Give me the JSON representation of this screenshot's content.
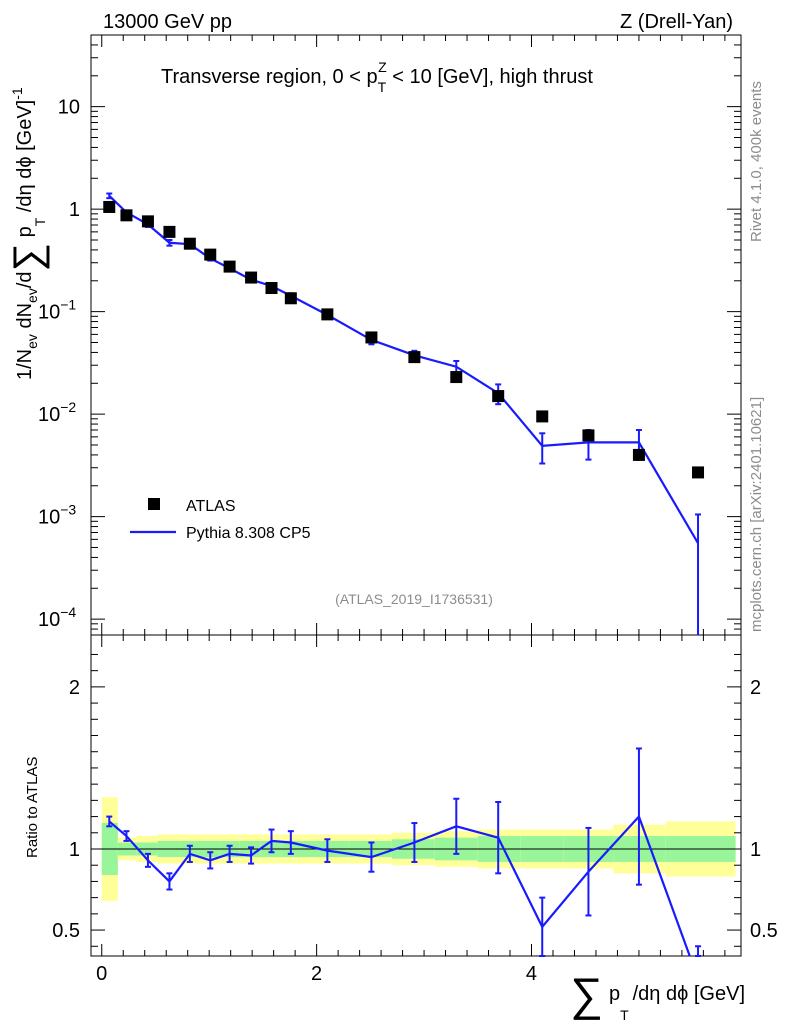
{
  "header": {
    "left": "13000 GeV pp",
    "right": "Z (Drell-Yan)"
  },
  "side": {
    "rivet": "Rivet 4.1.0,  400k events",
    "mcplots": "mcplots.cern.ch [arXiv:2401.10621]"
  },
  "chart_data": {
    "type": "scatter",
    "title": "Transverse region, 0 < p_T^Z < 10 [GeV], high thrust",
    "title_parts": {
      "pre": "Transverse region, 0 < p",
      "sub": "T",
      "sup": "Z",
      "post": " < 10 [GeV], high thrust"
    },
    "analysis_id": "(ATLAS_2019_I1736531)",
    "xlabel": "∑ p_T /dη dϕ [GeV]",
    "xlabel_parts": {
      "sum": "∑",
      "p": "p",
      "sub": "T",
      "rest": "/dη dϕ [GeV]"
    },
    "ylabel": "1/N_ev dN_ev/d∑ p_T /dη dϕ [GeV]^-1",
    "ylabel_parts": {
      "a": "1/N",
      "ev1": "ev",
      "b": " dN",
      "ev2": "ev",
      "c": "/d",
      "sum": "∑",
      "d": " p",
      "sub": "T",
      "e": " /dη dϕ  [GeV]",
      "sup": "-1"
    },
    "ratio_ylabel": "Ratio to ATLAS",
    "xlim": [
      -0.1,
      5.95
    ],
    "ylim": [
      7e-05,
      50
    ],
    "yscale": "log",
    "ratio_ylim": [
      0.34,
      2.32
    ],
    "x_ticks": [
      0,
      2,
      4
    ],
    "y_ticks": [
      {
        "exp": -4,
        "label": "10",
        "sup": "−4"
      },
      {
        "exp": -3,
        "label": "10",
        "sup": "−3"
      },
      {
        "exp": -2,
        "label": "10",
        "sup": "−2"
      },
      {
        "exp": -1,
        "label": "10",
        "sup": "−1"
      },
      {
        "exp": 0,
        "label": "1",
        "sup": ""
      },
      {
        "exp": 1,
        "label": "10",
        "sup": ""
      }
    ],
    "ratio_ticks": [
      0.5,
      1,
      2
    ],
    "legend": {
      "position": "bottom-left",
      "entries": [
        "ATLAS",
        "Pythia 8.308 CP5"
      ]
    },
    "series": [
      {
        "name": "ATLAS",
        "x": [
          0.07,
          0.23,
          0.43,
          0.63,
          0.82,
          1.01,
          1.19,
          1.39,
          1.58,
          1.76,
          2.1,
          2.51,
          2.91,
          3.3,
          3.69,
          4.1,
          4.53,
          5.0,
          5.55
        ],
        "y": [
          1.05,
          0.87,
          0.76,
          0.6,
          0.46,
          0.36,
          0.275,
          0.215,
          0.17,
          0.135,
          0.094,
          0.056,
          0.036,
          0.023,
          0.015,
          0.0095,
          0.0062,
          0.004,
          0.0027
        ]
      },
      {
        "name": "Pythia 8.308 CP5",
        "x": [
          0.07,
          0.23,
          0.43,
          0.63,
          0.82,
          1.01,
          1.19,
          1.39,
          1.58,
          1.76,
          2.1,
          2.51,
          2.91,
          3.3,
          3.69,
          4.1,
          4.53,
          5.0,
          5.55
        ],
        "y": [
          1.35,
          0.93,
          0.71,
          0.47,
          0.455,
          0.33,
          0.265,
          0.205,
          0.178,
          0.143,
          0.093,
          0.053,
          0.0375,
          0.029,
          0.016,
          0.0049,
          0.0053,
          0.0053,
          0.00055
        ],
        "yerr": [
          0.07,
          0.04,
          0.04,
          0.03,
          0.02,
          0.015,
          0.012,
          0.01,
          0.01,
          0.008,
          0.006,
          0.005,
          0.004,
          0.004,
          0.0035,
          0.0016,
          0.0017,
          0.0017,
          0.0005
        ],
        "ratio": [
          1.17,
          1.08,
          0.93,
          0.8,
          0.97,
          0.93,
          0.97,
          0.96,
          1.05,
          1.04,
          0.99,
          0.95,
          1.04,
          1.14,
          1.07,
          0.52,
          0.86,
          1.2,
          0.2
        ],
        "ratio_err": [
          0.03,
          0.03,
          0.04,
          0.05,
          0.05,
          0.05,
          0.05,
          0.05,
          0.07,
          0.07,
          0.07,
          0.09,
          0.12,
          0.17,
          0.22,
          0.18,
          0.27,
          0.42,
          0.2
        ]
      }
    ],
    "bands": {
      "edges": [
        0.0,
        0.15,
        0.32,
        0.52,
        0.72,
        0.91,
        1.1,
        1.28,
        1.48,
        1.67,
        1.85,
        2.3,
        2.7,
        3.1,
        3.5,
        3.9,
        4.3,
        4.76,
        5.25,
        5.9
      ],
      "inner": [
        0.16,
        0.04,
        0.04,
        0.05,
        0.05,
        0.05,
        0.05,
        0.05,
        0.05,
        0.05,
        0.05,
        0.05,
        0.06,
        0.07,
        0.08,
        0.08,
        0.08,
        0.08,
        0.08
      ],
      "outer": [
        0.32,
        0.07,
        0.08,
        0.09,
        0.09,
        0.09,
        0.09,
        0.09,
        0.09,
        0.09,
        0.09,
        0.09,
        0.1,
        0.11,
        0.12,
        0.12,
        0.12,
        0.15,
        0.17
      ]
    }
  },
  "colors": {
    "mc": "#1a1aff",
    "data": "#000000",
    "band_inner": "#99f599",
    "band_outer": "#ffff99",
    "side_text": "#8c8c8c"
  }
}
